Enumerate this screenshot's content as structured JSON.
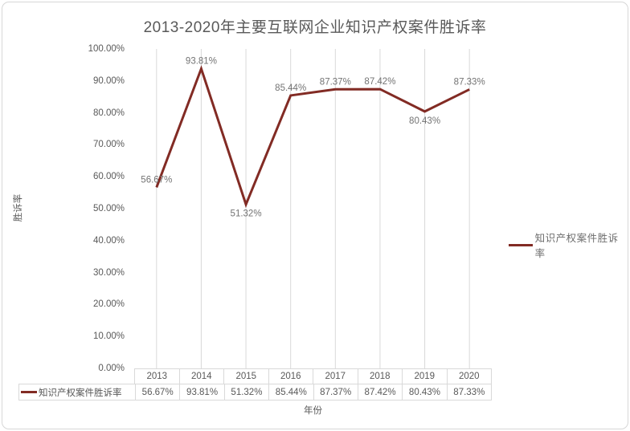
{
  "title": "2013-2020年主要互联网企业知识产权案件胜诉率",
  "colors": {
    "line": "#822B24",
    "grid": "#d9d9d9",
    "axis_text": "#595959",
    "data_label_text": "#737373",
    "table_border": "#d9d9d9"
  },
  "legend": {
    "label": "知识产权案件胜诉率"
  },
  "chart_data": {
    "type": "line",
    "title": "2013-2020年主要互联网企业知识产权案件胜诉率",
    "xlabel": "年份",
    "ylabel": "胜诉率",
    "categories": [
      "2013",
      "2014",
      "2015",
      "2016",
      "2017",
      "2018",
      "2019",
      "2020"
    ],
    "series": [
      {
        "name": "知识产权案件胜诉率",
        "values": [
          56.67,
          93.81,
          51.32,
          85.44,
          87.37,
          87.42,
          80.43,
          87.33
        ],
        "color": "#822B24"
      }
    ],
    "value_labels": [
      "56.67%",
      "93.81%",
      "51.32%",
      "85.44%",
      "87.37%",
      "87.42%",
      "80.43%",
      "87.33%"
    ],
    "label_positions": [
      "above",
      "above",
      "below",
      "above",
      "above",
      "above",
      "below",
      "above"
    ],
    "ylim": [
      0,
      100
    ],
    "y_ticks": [
      "100.00%",
      "90.00%",
      "80.00%",
      "70.00%",
      "60.00%",
      "50.00%",
      "40.00%",
      "30.00%",
      "20.00%",
      "10.00%",
      "0.00%"
    ],
    "grid": "vertical-category-lines",
    "legend_position": "right",
    "data_table": true
  }
}
